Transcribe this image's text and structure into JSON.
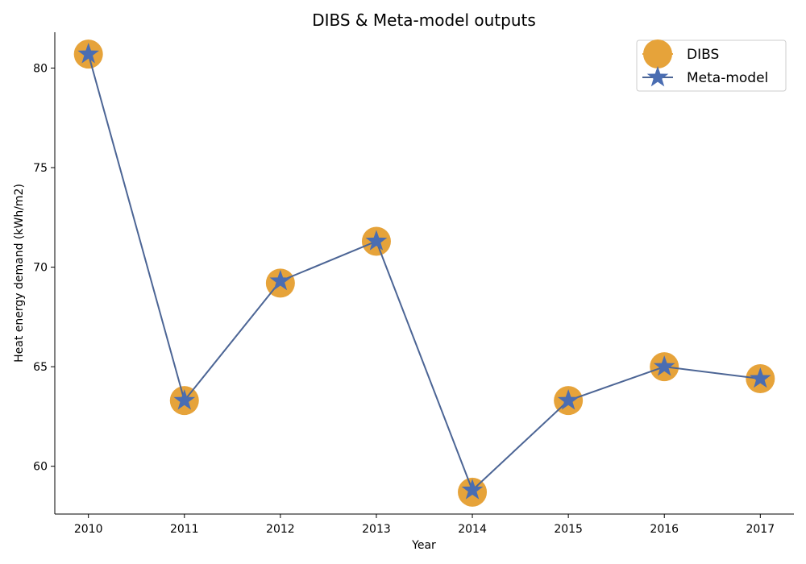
{
  "chart_data": {
    "type": "line",
    "title": "DIBS & Meta-model outputs",
    "xlabel": "Year",
    "ylabel": "Heat energy demand (kWh/m2)",
    "x": [
      2010,
      2011,
      2012,
      2013,
      2014,
      2015,
      2016,
      2017
    ],
    "xlim": [
      2009.65,
      2017.35
    ],
    "ylim": [
      57.6,
      81.8
    ],
    "yticks": [
      60,
      65,
      70,
      75,
      80
    ],
    "legend_position": "top-right",
    "grid": false,
    "series": [
      {
        "name": "DIBS",
        "marker": "circle",
        "line": false,
        "color": "#E6A33A",
        "values": [
          80.7,
          63.3,
          69.2,
          71.3,
          58.7,
          63.3,
          65.0,
          64.4
        ]
      },
      {
        "name": "Meta-model",
        "marker": "star",
        "line": true,
        "color": "#4A6DB2",
        "line_color": "#4C6595",
        "values": [
          80.7,
          63.3,
          69.3,
          71.3,
          58.8,
          63.3,
          65.0,
          64.4
        ]
      }
    ]
  }
}
